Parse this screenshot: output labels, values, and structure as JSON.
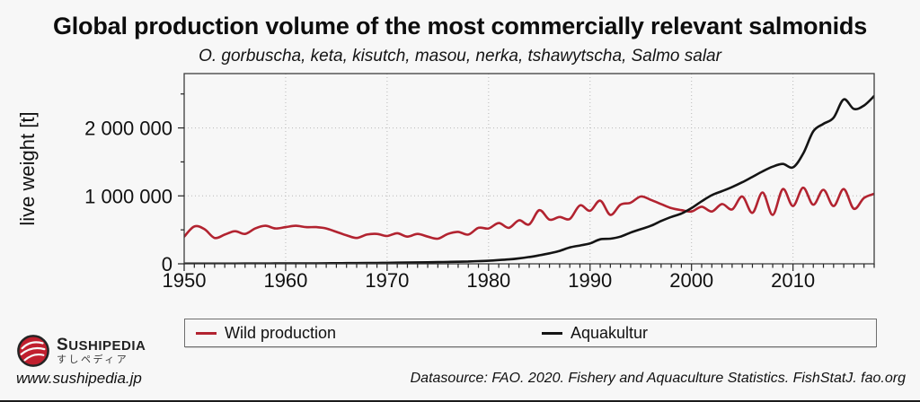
{
  "title": "Global production volume of the most commercially relevant salmonids",
  "subtitle": "O. gorbuscha, keta, kisutch, masou, nerka, tshawytscha, Salmo salar",
  "chart_data": {
    "type": "line",
    "title": "Global production volume of the most commercially relevant salmonids",
    "subtitle": "O. gorbuscha, keta, kisutch, masou, nerka, tshawytscha, Salmo salar",
    "xlabel": "",
    "ylabel": "live weight [t]",
    "xlim": [
      1950,
      2018
    ],
    "ylim": [
      0,
      2800000
    ],
    "xticks": [
      1950,
      1960,
      1970,
      1980,
      1990,
      2000,
      2010
    ],
    "yticks": {
      "values": [
        0,
        1000000,
        2000000
      ],
      "labels": [
        "0",
        "1 000 000",
        "2 000 000"
      ]
    },
    "minor_x_step": 1,
    "minor_y_step": 500000,
    "grid": "dotted at major ticks",
    "legend_position": "bottom",
    "x": [
      1950,
      1951,
      1952,
      1953,
      1954,
      1955,
      1956,
      1957,
      1958,
      1959,
      1960,
      1961,
      1962,
      1963,
      1964,
      1965,
      1966,
      1967,
      1968,
      1969,
      1970,
      1971,
      1972,
      1973,
      1974,
      1975,
      1976,
      1977,
      1978,
      1979,
      1980,
      1981,
      1982,
      1983,
      1984,
      1985,
      1986,
      1987,
      1988,
      1989,
      1990,
      1991,
      1992,
      1993,
      1994,
      1995,
      1996,
      1997,
      1998,
      1999,
      2000,
      2001,
      2002,
      2003,
      2004,
      2005,
      2006,
      2007,
      2008,
      2009,
      2010,
      2011,
      2012,
      2013,
      2014,
      2015,
      2016,
      2017,
      2018
    ],
    "series": [
      {
        "name": "Wild production",
        "color": "#b22330",
        "values": [
          400000,
          550000,
          510000,
          380000,
          430000,
          480000,
          440000,
          520000,
          560000,
          520000,
          540000,
          560000,
          540000,
          540000,
          520000,
          470000,
          420000,
          380000,
          430000,
          440000,
          410000,
          450000,
          400000,
          440000,
          400000,
          370000,
          440000,
          470000,
          430000,
          530000,
          520000,
          600000,
          530000,
          640000,
          580000,
          790000,
          650000,
          690000,
          660000,
          860000,
          780000,
          930000,
          720000,
          870000,
          900000,
          990000,
          940000,
          880000,
          820000,
          790000,
          770000,
          840000,
          770000,
          880000,
          800000,
          990000,
          750000,
          1050000,
          720000,
          1100000,
          850000,
          1120000,
          870000,
          1090000,
          850000,
          1100000,
          810000,
          970000,
          1030000
        ]
      },
      {
        "name": "Aquakultur",
        "color": "#141414",
        "values": [
          2000,
          2000,
          2000,
          3000,
          3000,
          3000,
          4000,
          4000,
          4000,
          5000,
          5000,
          6000,
          6000,
          7000,
          8000,
          9000,
          10000,
          11000,
          12000,
          13000,
          15000,
          17000,
          19000,
          21000,
          23000,
          25000,
          28000,
          31000,
          35000,
          40000,
          45000,
          55000,
          65000,
          80000,
          100000,
          125000,
          155000,
          190000,
          240000,
          270000,
          300000,
          360000,
          370000,
          400000,
          460000,
          510000,
          560000,
          630000,
          690000,
          740000,
          820000,
          920000,
          1010000,
          1070000,
          1130000,
          1200000,
          1280000,
          1360000,
          1430000,
          1470000,
          1420000,
          1620000,
          1950000,
          2060000,
          2150000,
          2420000,
          2280000,
          2330000,
          2470000
        ]
      }
    ]
  },
  "legend": {
    "items": [
      {
        "label": "Wild production",
        "color": "#b22330"
      },
      {
        "label": "Aquakultur",
        "color": "#141414"
      }
    ]
  },
  "footer": {
    "brand": "SUSHIPEDIA",
    "brand_jp": "すしペディア",
    "url": "www.sushipedia.jp",
    "datasource": "Datasource: FAO. 2020. Fishery and Aquaculture Statistics. FishStatJ. fao.org"
  },
  "colors": {
    "wild_line": "#b22330",
    "aquaculture_line": "#141414",
    "background": "#f7f7f7",
    "grid": "#b8b8b8",
    "frame": "#3d3d3d",
    "logo_red": "#c01f2e"
  }
}
